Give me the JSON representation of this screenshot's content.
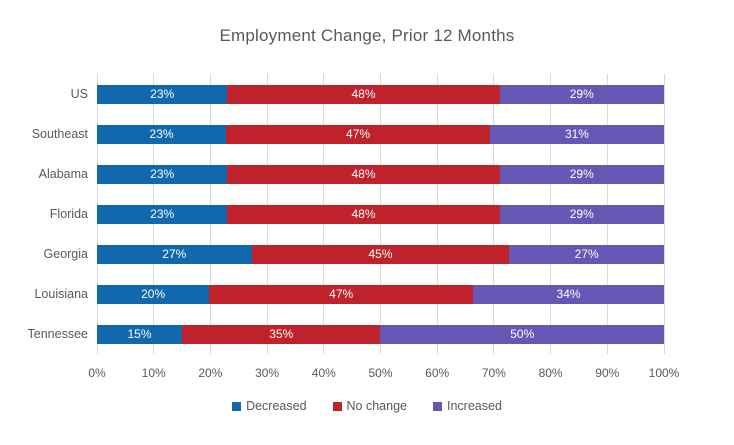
{
  "title": "Employment Change, Prior 12 Months",
  "colors": {
    "decreased": "#1168AD",
    "no_change": "#C0222C",
    "increased": "#6458B4",
    "gridline": "#D9D9D9",
    "axis_text": "#595959",
    "data_label_text": "#FFFFFF",
    "background": "#FFFFFF"
  },
  "chart_data": {
    "type": "bar",
    "orientation": "horizontal",
    "stacked": true,
    "title": "Employment Change, Prior 12 Months",
    "categories": [
      "US",
      "Southeast",
      "Alabama",
      "Florida",
      "Georgia",
      "Louisiana",
      "Tennessee"
    ],
    "series": [
      {
        "name": "Decreased",
        "color": "#1168AD",
        "values": [
          23,
          23,
          23,
          23,
          27,
          20,
          15
        ]
      },
      {
        "name": "No change",
        "color": "#C0222C",
        "values": [
          48,
          47,
          48,
          48,
          45,
          47,
          35
        ]
      },
      {
        "name": "Increased",
        "color": "#6458B4",
        "values": [
          29,
          31,
          29,
          29,
          27,
          34,
          50
        ]
      }
    ],
    "data_label_suffix": "%",
    "xlabel": "",
    "ylabel": "",
    "x_axis": {
      "min": 0,
      "max": 100,
      "tick_step": 10,
      "ticks": [
        "0%",
        "10%",
        "20%",
        "30%",
        "40%",
        "50%",
        "60%",
        "70%",
        "80%",
        "90%",
        "100%"
      ]
    },
    "grid": true,
    "legend": {
      "position": "bottom",
      "entries": [
        "Decreased",
        "No change",
        "Increased"
      ]
    }
  }
}
